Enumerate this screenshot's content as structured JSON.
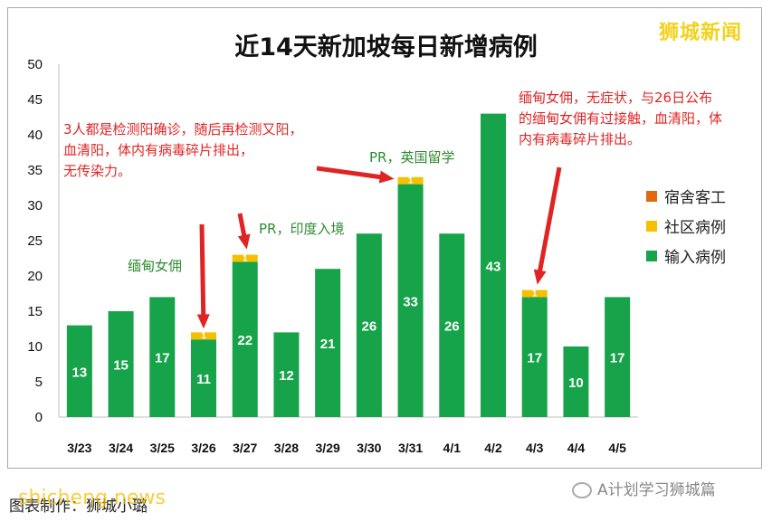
{
  "chart_data": {
    "type": "bar",
    "title": "近14天新加坡每日新增病例",
    "categories": [
      "3/23",
      "3/24",
      "3/25",
      "3/26",
      "3/27",
      "3/28",
      "3/29",
      "3/30",
      "3/31",
      "4/1",
      "4/2",
      "4/3",
      "4/4",
      "4/5"
    ],
    "series": [
      {
        "name": "输入病例",
        "color": "#16a34a",
        "values": [
          13,
          15,
          17,
          11,
          22,
          12,
          21,
          26,
          33,
          26,
          43,
          17,
          10,
          17
        ]
      },
      {
        "name": "社区病例",
        "color": "#f5c000",
        "values": [
          0,
          0,
          0,
          1,
          1,
          0,
          0,
          0,
          1,
          0,
          0,
          1,
          0,
          0
        ]
      },
      {
        "name": "宿舍客工",
        "color": "#e06a10",
        "values": [
          0,
          0,
          0,
          0,
          0,
          0,
          0,
          0,
          0,
          0,
          0,
          0,
          0,
          0
        ]
      }
    ],
    "stacked": true,
    "ylim": [
      0,
      50
    ],
    "yticks": [
      0,
      5,
      10,
      15,
      20,
      25,
      30,
      35,
      40,
      45,
      50
    ],
    "grid": false,
    "legend_position": "right",
    "annotations": [
      {
        "text": "3人都是检测阳确诊，随后再检测又阳，血清阳，体内有病毒碎片排出，无传染力。",
        "color": "#e02424"
      },
      {
        "text": "缅甸女佣",
        "color": "#2e8b2e"
      },
      {
        "text": "PR，印度入境",
        "color": "#2e8b2e"
      },
      {
        "text": "PR，英国留学",
        "color": "#2e8b2e"
      },
      {
        "text": "缅甸女佣，无症状，与26日公布的缅甸女佣有过接触，血清阳，体内有病毒碎片排出。",
        "color": "#e02424"
      }
    ]
  },
  "brand": "狮城新闻",
  "source_line": "图表制作：狮城小璐",
  "watermark_url": "shicheng.news",
  "wechat_account": "A计划学习狮城篇",
  "labels": {
    "ann_red_1": [
      "3人都是检测阳确诊，随后再检测又阳，",
      "血清阳，体内有病毒碎片排出，",
      "无传染力。"
    ],
    "ann_red_2": [
      "缅甸女佣，无症状，与26日公布",
      "的缅甸女佣有过接触，血清阳，体",
      "内有病毒碎片排出。"
    ]
  }
}
